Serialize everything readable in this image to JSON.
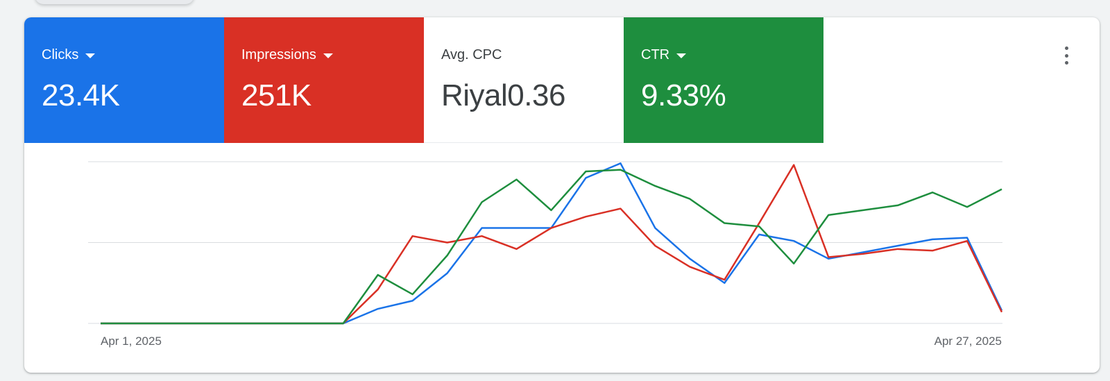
{
  "metrics": [
    {
      "label": "Clicks",
      "value": "23.4K",
      "color": "#1a73e8",
      "dropdown": true
    },
    {
      "label": "Impressions",
      "value": "251K",
      "color": "#d93025",
      "dropdown": true
    },
    {
      "label": "Avg. CPC",
      "value": "Riyal0.36",
      "color": "#ffffff",
      "dropdown": false
    },
    {
      "label": "CTR",
      "value": "9.33%",
      "color": "#1e8e3e",
      "dropdown": true
    }
  ],
  "menu_icon": "more-vert-icon",
  "chart_data": {
    "type": "line",
    "x_start_label": "Apr 1, 2025",
    "x_end_label": "Apr 27, 2025",
    "ylim": [
      0,
      100
    ],
    "grid": true,
    "series": [
      {
        "color": "#1a73e8",
        "values": [
          0,
          0,
          0,
          0,
          0,
          0,
          0,
          0,
          9,
          14,
          31,
          59,
          59,
          59,
          90,
          99,
          59,
          40,
          25,
          55,
          51,
          40,
          44,
          48,
          52,
          53,
          8
        ]
      },
      {
        "color": "#d93025",
        "values": [
          0,
          0,
          0,
          0,
          0,
          0,
          0,
          0,
          21,
          54,
          50,
          54,
          46,
          59,
          66,
          71,
          48,
          35,
          27,
          62,
          98,
          41,
          43,
          46,
          45,
          51,
          7
        ]
      },
      {
        "color": "#1e8e3e",
        "values": [
          0,
          0,
          0,
          0,
          0,
          0,
          0,
          0,
          30,
          18,
          42,
          75,
          89,
          70,
          94,
          95,
          85,
          77,
          62,
          60,
          37,
          67,
          70,
          73,
          81,
          72,
          83
        ]
      }
    ]
  }
}
